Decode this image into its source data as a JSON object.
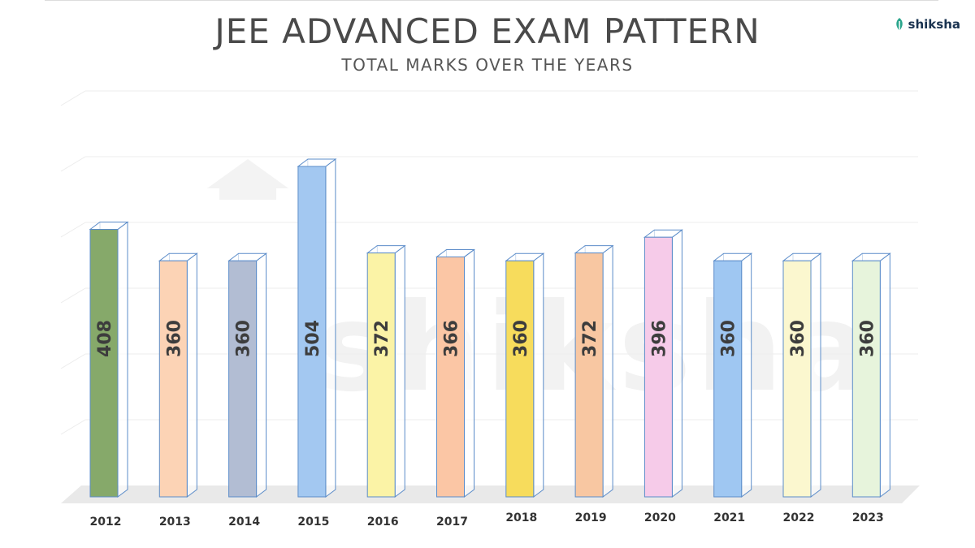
{
  "header": {
    "title": "JEE ADVANCED EXAM PATTERN",
    "subtitle": "TOTAL MARKS OVER THE YEARS"
  },
  "brand": {
    "logo_text": "shiksha",
    "watermark_text": "shiksha",
    "accent": "#1a3350",
    "leaf": "#2aa58c"
  },
  "chart_data": {
    "type": "bar",
    "title": "JEE ADVANCED EXAM PATTERN",
    "subtitle": "TOTAL MARKS OVER THE YEARS",
    "categories": [
      "2012",
      "2013",
      "2014",
      "2015",
      "2016",
      "2017",
      "2018",
      "2019",
      "2020",
      "2021",
      "2022",
      "2023"
    ],
    "values": [
      408,
      360,
      360,
      504,
      372,
      366,
      360,
      372,
      396,
      360,
      360,
      360
    ],
    "data_labels": [
      "408",
      "360",
      "360",
      "504",
      "372",
      "366",
      "360",
      "372",
      "396",
      "360",
      "360",
      "360"
    ],
    "colors": [
      "#86a96a",
      "#fcd3b5",
      "#b2bdd3",
      "#a3c8f1",
      "#fbf3a6",
      "#fbc6a5",
      "#f7dc5c",
      "#f8c7a2",
      "#f6cbe9",
      "#9fc7f2",
      "#fbf7cf",
      "#e7f4dc"
    ],
    "ylim": [
      0,
      504
    ],
    "xlabel": "",
    "ylabel": "",
    "grid": true,
    "legend": "none"
  }
}
